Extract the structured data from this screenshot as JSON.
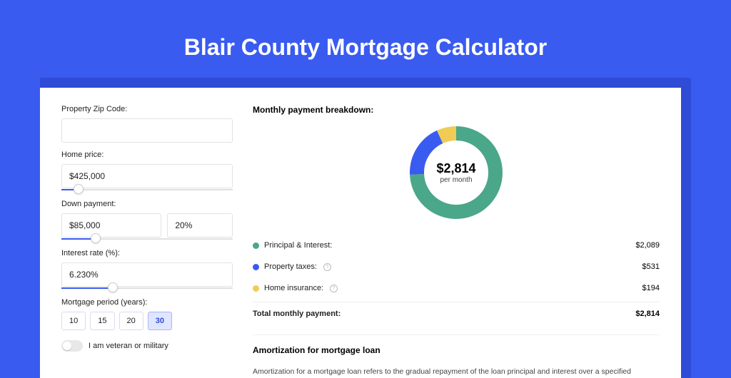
{
  "page": {
    "title": "Blair County Mortgage Calculator",
    "background_color": "#3a5bf0",
    "card_shadow_color": "#2f4cd6"
  },
  "form": {
    "zip": {
      "label": "Property Zip Code:",
      "value": ""
    },
    "home_price": {
      "label": "Home price:",
      "value": "$425,000",
      "slider_pct": 10
    },
    "down_payment": {
      "label": "Down payment:",
      "amount": "$85,000",
      "pct": "20%",
      "slider_pct": 20
    },
    "interest_rate": {
      "label": "Interest rate (%):",
      "value": "6.230%",
      "slider_pct": 30
    },
    "period": {
      "label": "Mortgage period (years):",
      "options": [
        "10",
        "15",
        "20",
        "30"
      ],
      "selected": "30"
    },
    "veteran": {
      "label": "I am veteran or military",
      "checked": false
    }
  },
  "breakdown": {
    "title": "Monthly payment breakdown:",
    "center_value": "$2,814",
    "center_sub": "per month",
    "donut": {
      "type": "donut",
      "slices": [
        {
          "key": "pi",
          "value": 2089,
          "color": "#4aa789",
          "pct": 74.2
        },
        {
          "key": "tax",
          "value": 531,
          "color": "#3a5bf0",
          "pct": 18.9
        },
        {
          "key": "ins",
          "value": 194,
          "color": "#f0cc56",
          "pct": 6.9
        }
      ],
      "thickness": 20,
      "radius": 55
    },
    "items": [
      {
        "label": "Principal & Interest:",
        "value": "$2,089",
        "color": "#4aa789",
        "info": false
      },
      {
        "label": "Property taxes:",
        "value": "$531",
        "color": "#3a5bf0",
        "info": true
      },
      {
        "label": "Home insurance:",
        "value": "$194",
        "color": "#f0cc56",
        "info": true
      }
    ],
    "total": {
      "label": "Total monthly payment:",
      "value": "$2,814"
    }
  },
  "amortization": {
    "title": "Amortization for mortgage loan",
    "text": "Amortization for a mortgage loan refers to the gradual repayment of the loan principal and interest over a specified"
  }
}
